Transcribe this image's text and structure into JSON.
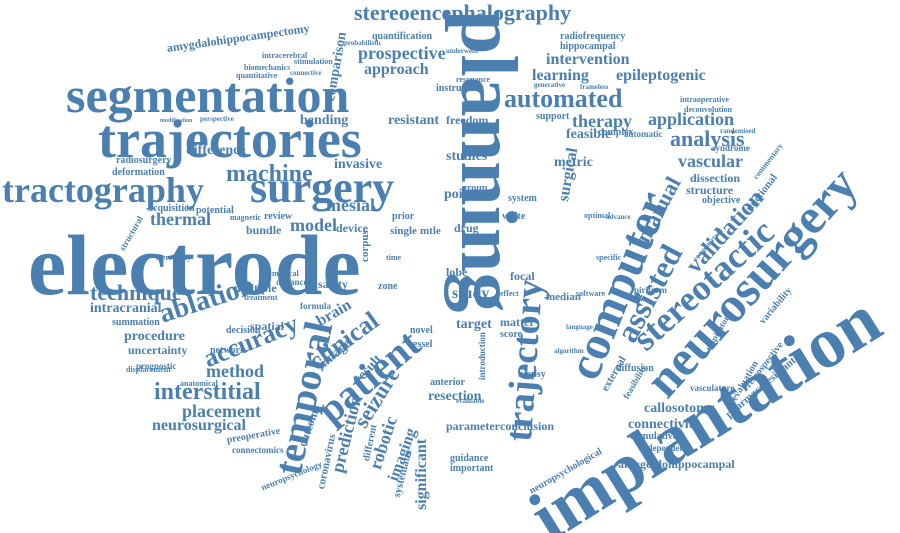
{
  "theme": {
    "word_color": "#4a7fb0",
    "background": "#ffffff"
  },
  "words": [
    "electrode",
    "planning",
    "implantation",
    "trajectories",
    "segmentation",
    "surgery",
    "tractography",
    "neurosurgery",
    "computer",
    "trajectory",
    "patient",
    "temporal",
    "stereotactic",
    "stereoencephalography",
    "automated",
    "ablation",
    "assisted",
    "accuracy",
    "technique",
    "clinical",
    "validation",
    "machine",
    "interstitial",
    "manual",
    "analysis",
    "prospective",
    "placement",
    "neurosurgical",
    "application",
    "therapy",
    "learning",
    "intervention",
    "approach",
    "epileptogenic",
    "model",
    "thermal",
    "method",
    "procedure",
    "intracranial",
    "mesial",
    "vascular",
    "seizure",
    "prediction",
    "robotic",
    "imaging",
    "resection",
    "study",
    "brain",
    "connectivity",
    "callosotomy",
    "amygdalohippocampal",
    "amygdalohippocampectomy",
    "comparison",
    "radiosurgery",
    "deformation",
    "bending",
    "resistant",
    "freedom",
    "quantification",
    "radiofrequency",
    "hippocampal",
    "difference",
    "invasive",
    "uncertainty",
    "network",
    "spatial",
    "multiple",
    "device",
    "drug",
    "point",
    "studies",
    "metric",
    "surgical",
    "feasible",
    "significant",
    "parameter",
    "conclusion",
    "matter",
    "focal",
    "target",
    "novel",
    "vessel",
    "anterior",
    "biopsy",
    "lobe",
    "safety",
    "zone",
    "image",
    "dissection",
    "structure",
    "objective",
    "functional",
    "diffusion",
    "external",
    "cumulative",
    "independent",
    "evaluation",
    "pharmacoresistant",
    "retrospective",
    "vasculature",
    "variability",
    "guidance",
    "important",
    "systematic",
    "different",
    "outcome",
    "coronavirus",
    "neuropsychological",
    "neuropsychology",
    "connectomics",
    "preoperative",
    "anatomical",
    "displacement",
    "summation",
    "prognostic",
    "structural",
    "stereotaxy",
    "potential",
    "acquisition",
    "review",
    "bundle",
    "magnetic",
    "medical",
    "distance",
    "treatment",
    "decision",
    "formula",
    "biomechanics",
    "quantitative",
    "stimulation",
    "intracerebral",
    "connective",
    "probabilistic",
    "underwent",
    "instrument",
    "resonance",
    "generative",
    "frameless",
    "support",
    "complex",
    "automatic",
    "randomised",
    "syndrome",
    "piriform",
    "computerized",
    "respiratory",
    "feasibility",
    "commentary",
    "intraoperative",
    "deconvolution",
    "perspective",
    "modification",
    "group",
    "system",
    "white",
    "score",
    "median",
    "software",
    "effect",
    "introduction",
    "time",
    "single",
    "mtle",
    "prior",
    "corpus",
    "result",
    "algorithm",
    "specific",
    "optimal",
    "advance",
    "language",
    "evaluable"
  ]
}
